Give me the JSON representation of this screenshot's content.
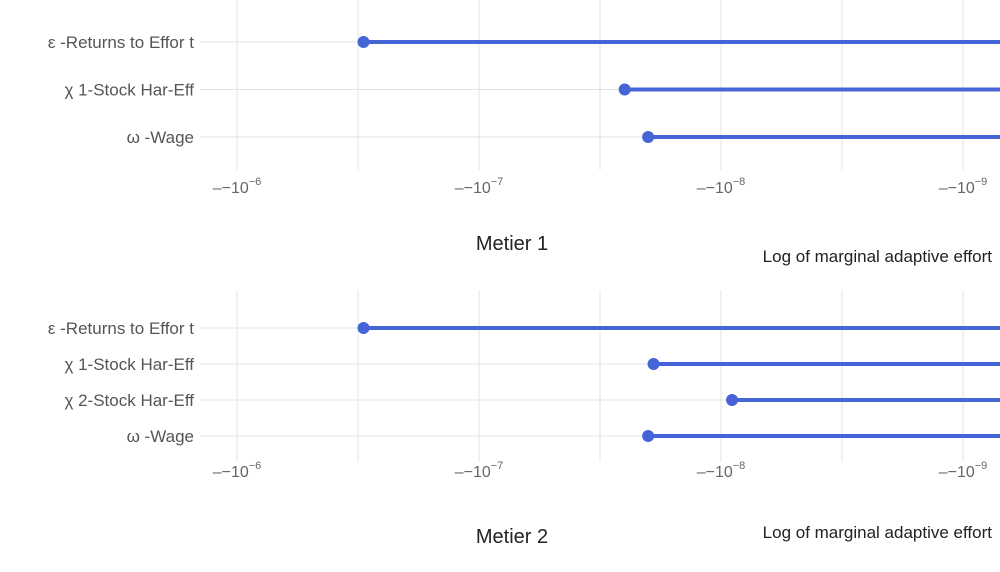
{
  "chart_data": [
    {
      "type": "lollipop",
      "orientation": "horizontal",
      "title": "Metier 1",
      "xlabel": "Log of marginal adaptive effort",
      "xscale": "log (negative values, -|x|)",
      "xlim": [
        -1.5e-06,
        -7e-10
      ],
      "xticks": [
        {
          "base": "–−10",
          "exp": "−6"
        },
        {
          "base": "–−10",
          "exp": "−7"
        },
        {
          "base": "–−10",
          "exp": "−8"
        },
        {
          "base": "–−10",
          "exp": "−9"
        }
      ],
      "xtick_values": [
        -1e-06,
        -1e-07,
        -1e-08,
        -1e-09
      ],
      "categories": [
        "ε -Returns to Effor t",
        "χ 1-Stock Har-Eff",
        "ω -Wage"
      ],
      "values": [
        -3e-07,
        -2.5e-08,
        -2e-08
      ],
      "color": "#4565D6",
      "grid": true
    },
    {
      "type": "lollipop",
      "orientation": "horizontal",
      "title": "Metier 2",
      "xlabel": "Log of marginal adaptive effort",
      "xscale": "log (negative values, -|x|)",
      "xlim": [
        -1.5e-06,
        -7e-10
      ],
      "xticks": [
        {
          "base": "–−10",
          "exp": "−6"
        },
        {
          "base": "–−10",
          "exp": "−7"
        },
        {
          "base": "–−10",
          "exp": "−8"
        },
        {
          "base": "–−10",
          "exp": "−9"
        }
      ],
      "xtick_values": [
        -1e-06,
        -1e-07,
        -1e-08,
        -1e-09
      ],
      "categories": [
        "ε -Returns to Effor t",
        "χ 1-Stock Har-Eff",
        "χ 2-Stock Har-Eff",
        "ω -Wage"
      ],
      "values": [
        -3e-07,
        -1.9e-08,
        -9e-09,
        -2e-08
      ],
      "color": "#4565D6",
      "grid": true
    }
  ]
}
